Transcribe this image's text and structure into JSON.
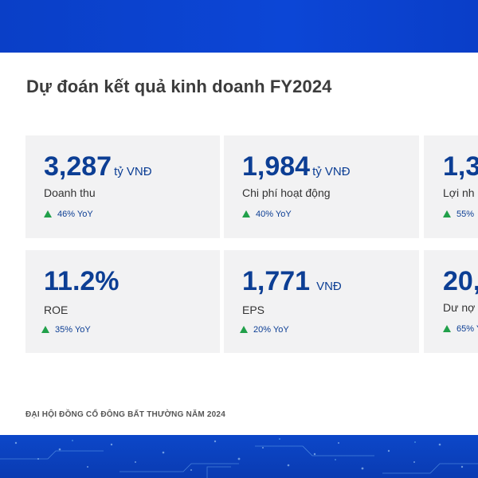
{
  "slide": {
    "title": "Dự đoán kết quả kinh doanh FY2024",
    "footer": "ĐẠI HỘI ĐỒNG CỔ ĐÔNG BẤT THƯỜNG NĂM 2024"
  },
  "cards": [
    {
      "value": "3,287",
      "unit": "tỷ VNĐ",
      "label": "Doanh thu",
      "yoy": "46% YoY",
      "trend": "up"
    },
    {
      "value": "1,984",
      "unit": "tỷ VNĐ",
      "label": "Chi phí hoạt động",
      "yoy": "40% YoY",
      "trend": "up"
    },
    {
      "value": "1,3",
      "unit": "",
      "label": "Lợi nh",
      "yoy": "55%",
      "trend": "up"
    },
    {
      "value": "11.2%",
      "unit": "",
      "label": "ROE",
      "yoy": "35% YoY",
      "trend": "up"
    },
    {
      "value": "1,771",
      "unit": "VNĐ",
      "label": "EPS",
      "yoy": "20% YoY",
      "trend": "up"
    },
    {
      "value": "20,",
      "unit": "",
      "label": "Dư nợ",
      "yoy": "65% Y",
      "trend": "up"
    }
  ],
  "colors": {
    "banner": "#0c46d6",
    "value_text": "#0c3e94",
    "card_bg": "#f2f2f3",
    "trend_up": "#21a04a"
  }
}
